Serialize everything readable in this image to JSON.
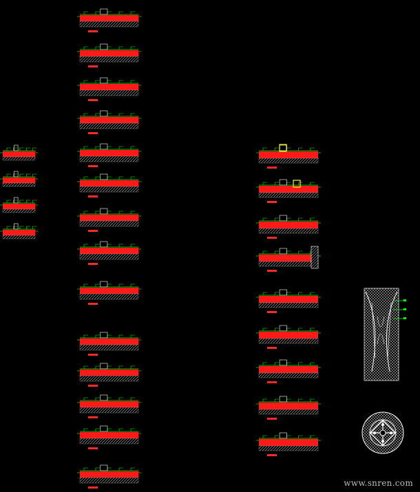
{
  "drawing": {
    "background": "#000000",
    "colors": {
      "layer_fill": "#ff1a1a",
      "annotation": "#00ff00",
      "hatch": "#cfcfcf",
      "label": "#ff2a2a",
      "highlight": "#ffff00",
      "white": "#ffffff"
    }
  },
  "watermark": "www.snren.com",
  "sections": [
    {
      "id": "s1",
      "label": "",
      "scale": ""
    },
    {
      "id": "s2",
      "label": "",
      "scale": ""
    },
    {
      "id": "s3",
      "label": "",
      "scale": ""
    },
    {
      "id": "s4",
      "label": "",
      "scale": ""
    },
    {
      "id": "s5",
      "label": "",
      "scale": ""
    },
    {
      "id": "s6",
      "label": "",
      "scale": ""
    },
    {
      "id": "s7",
      "label": "",
      "scale": ""
    },
    {
      "id": "s8",
      "label": "",
      "scale": ""
    },
    {
      "id": "s9",
      "label": "",
      "scale": ""
    },
    {
      "id": "s10",
      "label": "",
      "scale": ""
    },
    {
      "id": "s11",
      "label": "",
      "scale": ""
    },
    {
      "id": "s12",
      "label": "",
      "scale": ""
    },
    {
      "id": "s13",
      "label": "",
      "scale": ""
    },
    {
      "id": "s14",
      "label": "",
      "scale": ""
    }
  ],
  "detail_legend": [
    "",
    "",
    ""
  ]
}
